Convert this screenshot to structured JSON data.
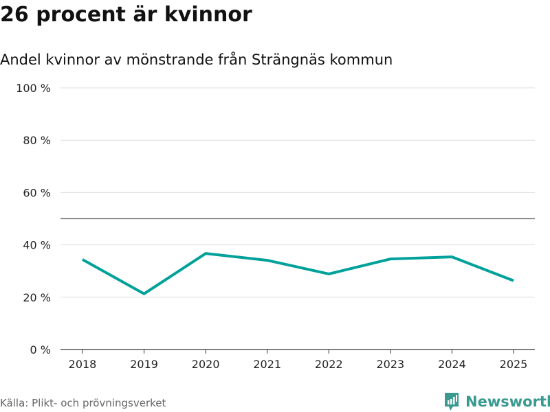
{
  "header": {
    "title": "26 procent är kvinnor",
    "subtitle": "Andel kvinnor av mönstrande från Strängnäs kommun"
  },
  "footer": {
    "source": "Källa: Plikt- och prövningsverket",
    "brand": "Newsworthy"
  },
  "colors": {
    "line": "#00a19a",
    "brand": "#3a9a90"
  },
  "chart_data": {
    "type": "line",
    "title": "26 procent är kvinnor",
    "subtitle": "Andel kvinnor av mönstrande från Strängnäs kommun",
    "x": [
      "2018",
      "2019",
      "2020",
      "2021",
      "2022",
      "2023",
      "2024",
      "2025"
    ],
    "series": [
      {
        "name": "Andel kvinnor",
        "values": [
          34.4,
          21.3,
          36.7,
          34.1,
          28.9,
          34.6,
          35.4,
          26.3
        ]
      }
    ],
    "reference_line": 50,
    "yticks": [
      0,
      20,
      40,
      60,
      80,
      100
    ],
    "ytick_labels": [
      "0 %",
      "20 %",
      "40 %",
      "60 %",
      "80 %",
      "100 %"
    ],
    "ylim": [
      0,
      100
    ],
    "grid": true,
    "xlabel": "",
    "ylabel": ""
  }
}
